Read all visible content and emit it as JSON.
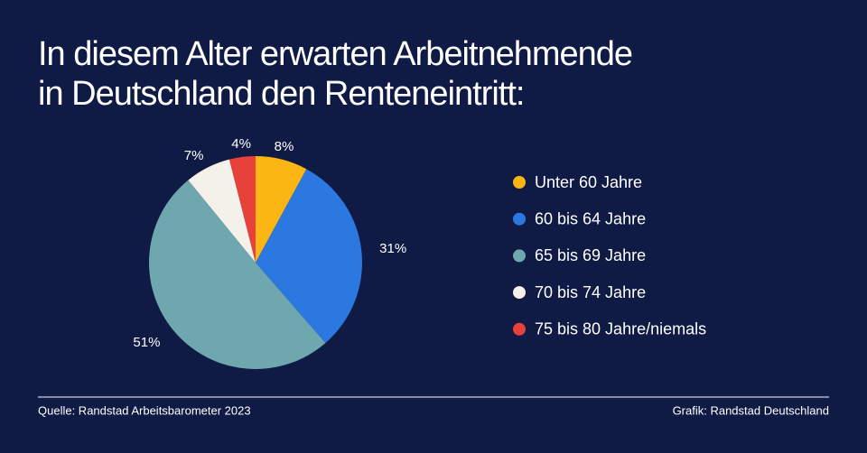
{
  "chart_data": {
    "type": "pie",
    "title": [
      "In diesem Alter erwarten Arbeitnehmende",
      "in Deutschland den Renteneintritt:"
    ],
    "categories": [
      "Unter 60 Jahre",
      "60 bis 64 Jahre",
      "65 bis 69 Jahre",
      "70 bis 74 Jahre",
      "75 bis 80 Jahre/niemals"
    ],
    "values": [
      8,
      31,
      51,
      7,
      4
    ],
    "value_labels": [
      "8%",
      "31%",
      "51%",
      "7%",
      "4%"
    ],
    "colors": [
      "#fbb614",
      "#2b78e0",
      "#6fa7ae",
      "#f3f1ea",
      "#e8403a"
    ],
    "legend": "right",
    "source": "Quelle: Randstad Arbeitsbarometer 2023",
    "credit": "Grafik: Randstad Deutschland"
  }
}
